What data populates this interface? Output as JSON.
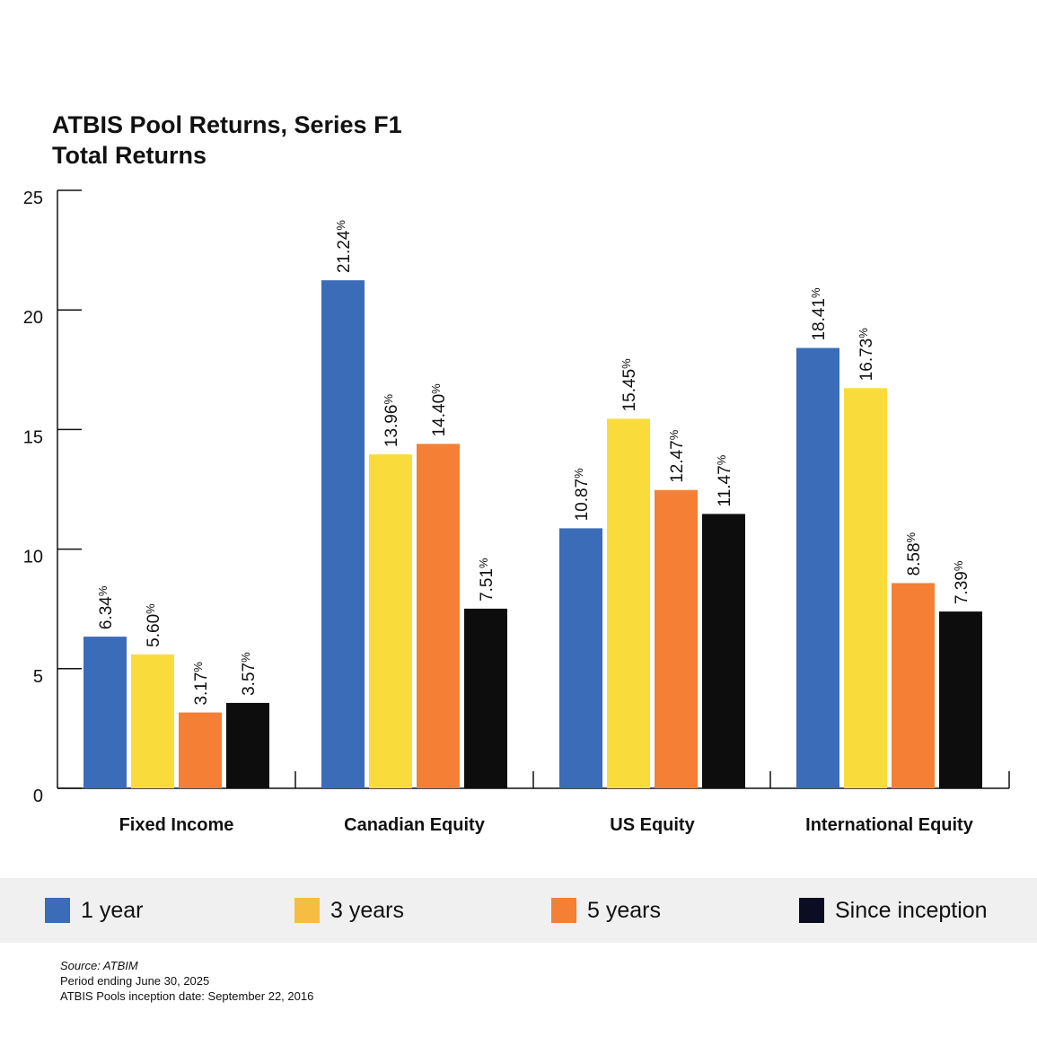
{
  "title": {
    "line1": "ATBIS Pool Returns, Series F1",
    "line2": "Total Returns"
  },
  "chart_data": {
    "type": "bar",
    "title": "ATBIS Pool Returns, Series F1 Total Returns",
    "xlabel": "",
    "ylabel": "",
    "ylim": [
      0,
      25
    ],
    "yticks": [
      0,
      5,
      10,
      15,
      20,
      25
    ],
    "grid": false,
    "legend_position": "bottom",
    "categories": [
      "Fixed Income",
      "Canadian Equity",
      "US Equity",
      "International Equity"
    ],
    "series": [
      {
        "name": "1 year",
        "color": "#3b6cb7",
        "values": [
          6.34,
          21.24,
          10.87,
          18.41
        ],
        "labels": [
          "6.34",
          "21.24",
          "10.87",
          "18.41"
        ]
      },
      {
        "name": "3 years",
        "color": "#f9dc3c",
        "values": [
          5.6,
          13.96,
          15.45,
          16.73
        ],
        "labels": [
          "5.60",
          "13.96",
          "15.45",
          "16.73"
        ]
      },
      {
        "name": "5 years",
        "color": "#f47f35",
        "values": [
          3.17,
          14.4,
          12.47,
          8.58
        ],
        "labels": [
          "3.17",
          "14.40",
          "12.47",
          "8.58"
        ]
      },
      {
        "name": "Since inception",
        "color": "#0d0d0d",
        "values": [
          3.57,
          7.51,
          11.47,
          7.39
        ],
        "labels": [
          "3.57",
          "7.51",
          "11.47",
          "7.39"
        ]
      }
    ],
    "value_suffix": "%"
  },
  "legend": {
    "items": [
      {
        "label": "1 year",
        "color": "#3b6cb7"
      },
      {
        "label": "3 years",
        "color": "#f5bd41"
      },
      {
        "label": "5 years",
        "color": "#f47f35"
      },
      {
        "label": "Since inception",
        "color": "#0b0e22"
      }
    ]
  },
  "notes": {
    "source": "Source: ATBIM",
    "period": "Period ending June 30, 2025",
    "inception": "ATBIS Pools inception date: September 22, 2016"
  }
}
